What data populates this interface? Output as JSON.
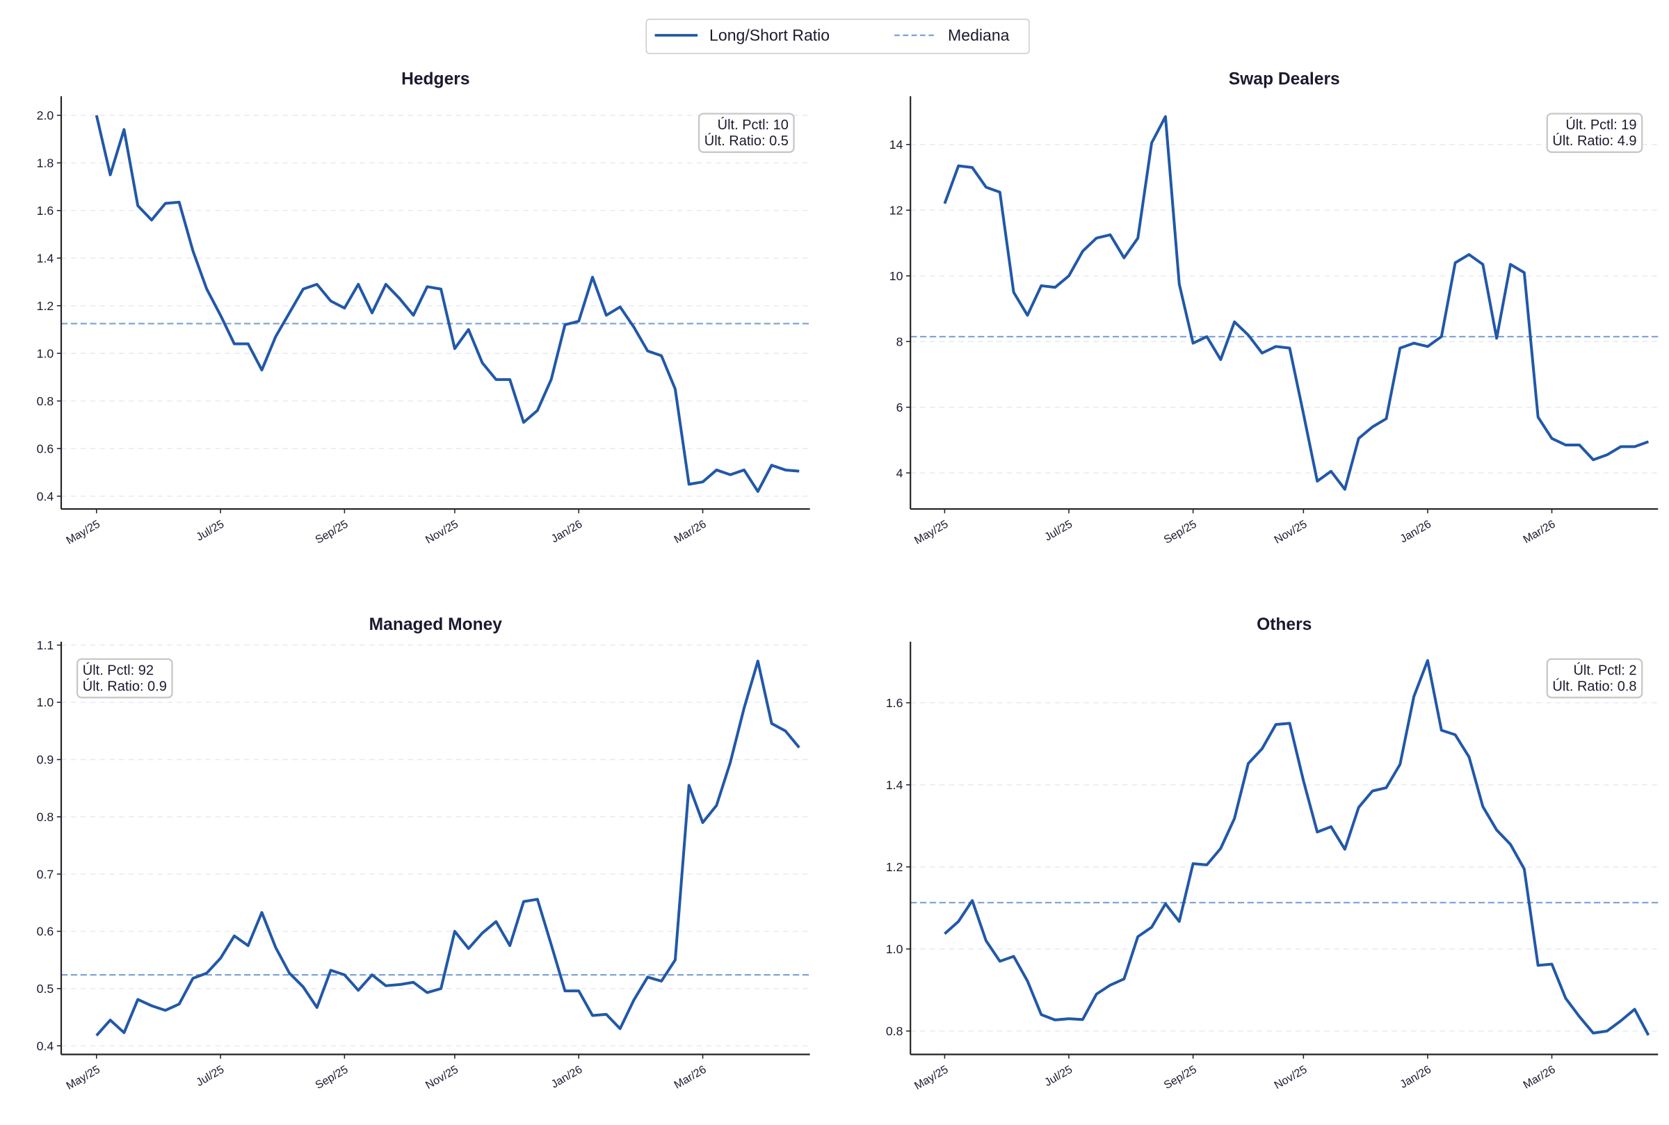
{
  "chart_data": [
    {
      "type": "line",
      "title": "Hedgers",
      "categories": [
        "May/25",
        null,
        null,
        null,
        null,
        null,
        null,
        null,
        null,
        "Jul/25",
        null,
        null,
        null,
        null,
        null,
        null,
        null,
        null,
        "Sep/25",
        null,
        null,
        null,
        null,
        null,
        null,
        null,
        "Nov/25",
        null,
        null,
        null,
        null,
        null,
        null,
        null,
        null,
        "Jan/26",
        null,
        null,
        null,
        null,
        null,
        null,
        null,
        null,
        "Mar/26",
        null,
        null,
        null,
        null,
        null,
        null,
        null
      ],
      "series": [
        {
          "name": "Long/Short Ratio",
          "color": "#2158a8",
          "values": [
            2.0,
            1.75,
            1.94,
            1.62,
            1.56,
            1.63,
            1.635,
            1.43,
            1.27,
            1.16,
            1.04,
            1.04,
            0.93,
            1.07,
            1.17,
            1.27,
            1.29,
            1.22,
            1.19,
            1.29,
            1.17,
            1.29,
            1.23,
            1.16,
            1.28,
            1.27,
            1.02,
            1.1,
            0.96,
            0.89,
            0.89,
            0.71,
            0.76,
            0.89,
            1.12,
            1.135,
            1.32,
            1.16,
            1.195,
            1.11,
            1.01,
            0.99,
            0.85,
            0.45,
            0.46,
            0.51,
            0.49,
            0.51,
            0.42,
            0.53,
            0.51,
            0.505
          ]
        },
        {
          "name": "Mediana",
          "color": "#7aa0d8",
          "value": 1.125
        }
      ],
      "annotations": [
        "Últ. Pctl: 10",
        "Últ. Ratio: 0.5"
      ],
      "annotation_corner": "upper right",
      "ylim": [
        0.346,
        2.08
      ],
      "yticks": [
        0.4,
        0.6,
        0.8,
        {
          "value": 1.0,
          "label": "1.0"
        },
        1.2,
        1.4,
        1.6,
        1.8,
        {
          "value": 2.0,
          "label": "2.0"
        }
      ],
      "grid": true
    },
    {
      "type": "line",
      "title": "Swap Dealers",
      "categories": [
        "May/25",
        null,
        null,
        null,
        null,
        null,
        null,
        null,
        null,
        "Jul/25",
        null,
        null,
        null,
        null,
        null,
        null,
        null,
        null,
        "Sep/25",
        null,
        null,
        null,
        null,
        null,
        null,
        null,
        "Nov/25",
        null,
        null,
        null,
        null,
        null,
        null,
        null,
        null,
        "Jan/26",
        null,
        null,
        null,
        null,
        null,
        null,
        null,
        null,
        "Mar/26",
        null,
        null,
        null,
        null,
        null,
        null,
        null
      ],
      "series": [
        {
          "name": "Long/Short Ratio",
          "color": "#2158a8",
          "values": [
            12.2,
            13.35,
            13.3,
            12.7,
            12.55,
            9.5,
            8.8,
            9.7,
            9.65,
            10.0,
            10.75,
            11.15,
            11.25,
            10.55,
            11.15,
            14.05,
            14.85,
            9.75,
            7.95,
            8.15,
            7.45,
            8.6,
            8.2,
            7.65,
            7.85,
            7.8,
            5.8,
            3.75,
            4.05,
            3.5,
            5.05,
            5.4,
            5.65,
            7.8,
            7.95,
            7.85,
            8.15,
            10.4,
            10.65,
            10.35,
            8.1,
            10.35,
            10.1,
            5.7,
            5.05,
            4.85,
            4.85,
            4.4,
            4.55,
            4.8,
            4.8,
            4.95
          ]
        },
        {
          "name": "Mediana",
          "color": "#7aa0d8",
          "value": 8.15
        }
      ],
      "annotations": [
        "Últ. Pctl: 19",
        "Últ. Ratio: 4.9"
      ],
      "annotation_corner": "upper right",
      "ylim": [
        2.9,
        15.47
      ],
      "yticks": [
        4,
        6,
        8,
        10,
        12,
        14
      ],
      "grid": true
    },
    {
      "type": "line",
      "title": "Managed Money",
      "categories": [
        "May/25",
        null,
        null,
        null,
        null,
        null,
        null,
        null,
        null,
        "Jul/25",
        null,
        null,
        null,
        null,
        null,
        null,
        null,
        null,
        "Sep/25",
        null,
        null,
        null,
        null,
        null,
        null,
        null,
        "Nov/25",
        null,
        null,
        null,
        null,
        null,
        null,
        null,
        null,
        "Jan/26",
        null,
        null,
        null,
        null,
        null,
        null,
        null,
        null,
        "Mar/26",
        null,
        null,
        null,
        null,
        null,
        null,
        null
      ],
      "series": [
        {
          "name": "Long/Short Ratio",
          "color": "#2158a8",
          "values": [
            0.418,
            0.445,
            0.423,
            0.481,
            0.47,
            0.462,
            0.473,
            0.518,
            0.527,
            0.553,
            0.592,
            0.575,
            0.633,
            0.572,
            0.527,
            0.503,
            0.467,
            0.532,
            0.524,
            0.497,
            0.524,
            0.505,
            0.507,
            0.511,
            0.493,
            0.5,
            0.6,
            0.57,
            0.597,
            0.617,
            0.575,
            0.652,
            0.656,
            0.577,
            0.496,
            0.496,
            0.453,
            0.455,
            0.43,
            0.48,
            0.52,
            0.513,
            0.55,
            0.855,
            0.79,
            0.82,
            0.895,
            0.99,
            1.072,
            0.963,
            0.95,
            0.921
          ]
        },
        {
          "name": "Mediana",
          "color": "#7aa0d8",
          "value": 0.524
        }
      ],
      "annotations": [
        "Últ. Pctl: 92",
        "Últ. Ratio: 0.9"
      ],
      "annotation_corner": "upper left",
      "ylim": [
        0.385,
        1.106
      ],
      "yticks": [
        0.4,
        0.5,
        0.6,
        0.7,
        0.8,
        0.9,
        {
          "value": 1.0,
          "label": "1.0"
        },
        1.1
      ],
      "grid": true
    },
    {
      "type": "line",
      "title": "Others",
      "categories": [
        "May/25",
        null,
        null,
        null,
        null,
        null,
        null,
        null,
        null,
        "Jul/25",
        null,
        null,
        null,
        null,
        null,
        null,
        null,
        null,
        "Sep/25",
        null,
        null,
        null,
        null,
        null,
        null,
        null,
        "Nov/25",
        null,
        null,
        null,
        null,
        null,
        null,
        null,
        null,
        "Jan/26",
        null,
        null,
        null,
        null,
        null,
        null,
        null,
        null,
        "Mar/26",
        null,
        null,
        null,
        null,
        null,
        null,
        null
      ],
      "series": [
        {
          "name": "Long/Short Ratio",
          "color": "#2158a8",
          "values": [
            1.037,
            1.067,
            1.118,
            1.02,
            0.97,
            0.982,
            0.922,
            0.84,
            0.827,
            0.83,
            0.828,
            0.89,
            0.912,
            0.927,
            1.03,
            1.053,
            1.11,
            1.067,
            1.208,
            1.205,
            1.245,
            1.318,
            1.452,
            1.488,
            1.547,
            1.55,
            1.41,
            1.285,
            1.298,
            1.243,
            1.345,
            1.385,
            1.393,
            1.45,
            1.615,
            1.703,
            1.533,
            1.522,
            1.468,
            1.347,
            1.29,
            1.255,
            1.195,
            0.96,
            0.963,
            0.88,
            0.835,
            0.795,
            0.8,
            0.825,
            0.853,
            0.79
          ]
        },
        {
          "name": "Mediana",
          "color": "#7aa0d8",
          "value": 1.113
        }
      ],
      "annotations": [
        "Últ. Pctl: 2",
        "Últ. Ratio: 0.8"
      ],
      "annotation_corner": "upper right",
      "ylim": [
        0.743,
        1.749
      ],
      "yticks": [
        0.8,
        {
          "value": 1.0,
          "label": "1.0"
        },
        1.2,
        1.4,
        1.6
      ],
      "grid": true
    }
  ]
}
